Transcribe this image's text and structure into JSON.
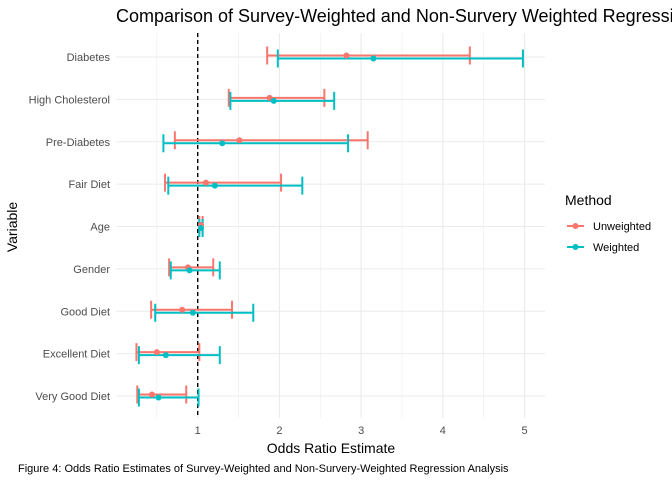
{
  "chart_data": {
    "type": "errorbar-point",
    "title": "Comparison of Survey-Weighted and Non-Survery Weighted Regression",
    "xlabel": "Odds Ratio Estimate",
    "ylabel": "Variable",
    "caption": "Figure 4: Odds Ratio Estimates of Survey-Weighted and Non-Survery-Weighted Regression Analysis",
    "xlim": [
      0,
      5.25
    ],
    "x_ticks": [
      1,
      2,
      3,
      4,
      5
    ],
    "reference_line": 1,
    "grid": true,
    "legend": {
      "title": "Method",
      "position": "right"
    },
    "categories": [
      "Diabetes",
      "High Cholesterol",
      "Pre-Diabetes",
      "Fair Diet",
      "Age",
      "Gender",
      "Good Diet",
      "Excellent Diet",
      "Very Good Diet"
    ],
    "series": [
      {
        "name": "Unweighted",
        "color": "#F8766D",
        "estimate": [
          2.82,
          1.88,
          1.51,
          1.1,
          1.04,
          0.88,
          0.81,
          0.5,
          0.44
        ],
        "lower": [
          1.85,
          1.38,
          0.72,
          0.6,
          1.02,
          0.65,
          0.43,
          0.25,
          0.26
        ],
        "upper": [
          4.33,
          2.55,
          3.08,
          2.02,
          1.06,
          1.19,
          1.42,
          1.02,
          0.86
        ]
      },
      {
        "name": "Weighted",
        "color": "#00BFC4",
        "estimate": [
          3.15,
          1.93,
          1.3,
          1.21,
          1.04,
          0.9,
          0.94,
          0.61,
          0.52
        ],
        "lower": [
          1.98,
          1.4,
          0.58,
          0.64,
          1.02,
          0.67,
          0.48,
          0.28,
          0.28
        ],
        "upper": [
          4.98,
          2.67,
          2.84,
          2.28,
          1.06,
          1.27,
          1.68,
          1.27,
          1.01
        ]
      }
    ]
  }
}
